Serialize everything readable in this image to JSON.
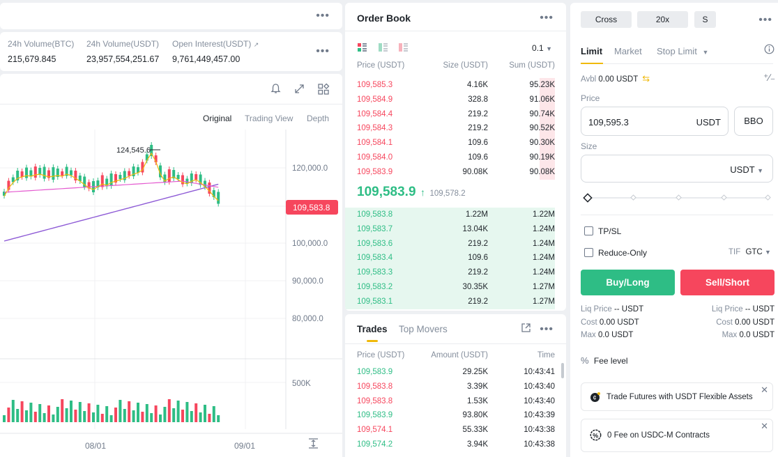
{
  "stats": [
    {
      "label": "24h Volume(BTC)",
      "value": "215,679.845"
    },
    {
      "label": "24h Volume(USDT)",
      "value": "23,957,554,251.67"
    },
    {
      "label": "Open Interest(USDT)",
      "value": "9,761,449,457.00"
    }
  ],
  "chart": {
    "tabs": [
      "Original",
      "Trading View",
      "Depth"
    ],
    "price_labels": [
      "120,000.0",
      "100,000.0",
      "90,000.0",
      "80,000.0"
    ],
    "high_label": "124,545.6",
    "current_price": "109,583.8",
    "volume_label": "500K",
    "x_labels": [
      "08/01",
      "09/01"
    ],
    "accent_red": "#f6465d",
    "accent_green": "#2ebd85"
  },
  "chart_data": {
    "type": "candlestick",
    "title": "",
    "ylabel": "",
    "ylim": [
      70000,
      130000
    ],
    "y_ticks": [
      120000,
      100000,
      90000,
      80000
    ],
    "x_ticks": [
      "08/01",
      "09/01"
    ],
    "last_price": 109583.8,
    "annotated_high": 124545.6
  },
  "orderbook": {
    "title": "Order Book",
    "precision": "0.1",
    "headers": {
      "price": "Price (USDT)",
      "size": "Size (USDT)",
      "sum": "Sum (USDT)"
    },
    "asks": [
      {
        "price": "109,585.3",
        "size": "4.16K",
        "sum": "95.23K",
        "depth": 0.08
      },
      {
        "price": "109,584.9",
        "size": "328.8",
        "sum": "91.06K",
        "depth": 0.08
      },
      {
        "price": "109,584.4",
        "size": "219.2",
        "sum": "90.74K",
        "depth": 0.08
      },
      {
        "price": "109,584.3",
        "size": "219.2",
        "sum": "90.52K",
        "depth": 0.08
      },
      {
        "price": "109,584.1",
        "size": "109.6",
        "sum": "90.30K",
        "depth": 0.08
      },
      {
        "price": "109,584.0",
        "size": "109.6",
        "sum": "90.19K",
        "depth": 0.08
      },
      {
        "price": "109,583.9",
        "size": "90.08K",
        "sum": "90.08K",
        "depth": 0.08
      }
    ],
    "mid_price": "109,583.9",
    "mark_price": "109,578.2",
    "bids": [
      {
        "price": "109,583.8",
        "size": "1.22M",
        "sum": "1.22M",
        "depth": 1
      },
      {
        "price": "109,583.7",
        "size": "13.04K",
        "sum": "1.24M",
        "depth": 1
      },
      {
        "price": "109,583.6",
        "size": "219.2",
        "sum": "1.24M",
        "depth": 1
      },
      {
        "price": "109,583.4",
        "size": "109.6",
        "sum": "1.24M",
        "depth": 1
      },
      {
        "price": "109,583.3",
        "size": "219.2",
        "sum": "1.24M",
        "depth": 1
      },
      {
        "price": "109,583.2",
        "size": "30.35K",
        "sum": "1.27M",
        "depth": 1
      },
      {
        "price": "109,583.1",
        "size": "219.2",
        "sum": "1.27M",
        "depth": 1
      }
    ]
  },
  "trades": {
    "tabs": [
      "Trades",
      "Top Movers"
    ],
    "headers": {
      "price": "Price (USDT)",
      "amount": "Amount (USDT)",
      "time": "Time"
    },
    "rows": [
      {
        "price": "109,583.9",
        "amount": "29.25K",
        "time": "10:43:41",
        "side": "buy"
      },
      {
        "price": "109,583.8",
        "amount": "3.39K",
        "time": "10:43:40",
        "side": "sell"
      },
      {
        "price": "109,583.8",
        "amount": "1.53K",
        "time": "10:43:40",
        "side": "sell"
      },
      {
        "price": "109,583.9",
        "amount": "93.80K",
        "time": "10:43:39",
        "side": "buy"
      },
      {
        "price": "109,574.1",
        "amount": "55.33K",
        "time": "10:43:38",
        "side": "sell"
      },
      {
        "price": "109,574.2",
        "amount": "3.94K",
        "time": "10:43:38",
        "side": "buy"
      }
    ]
  },
  "form": {
    "margin_mode": "Cross",
    "leverage": "20x",
    "asset_mode": "S",
    "order_tabs": [
      "Limit",
      "Market",
      "Stop Limit"
    ],
    "avbl_label": "Avbl",
    "avbl_value": "0.00 USDT",
    "price_label": "Price",
    "price_value": "109,595.3",
    "price_unit": "USDT",
    "bbo": "BBO",
    "size_label": "Size",
    "size_unit": "USDT",
    "tpsl": "TP/SL",
    "reduce_only": "Reduce-Only",
    "tif_label": "TIF",
    "tif_value": "GTC",
    "buy": "Buy/Long",
    "sell": "Sell/Short",
    "liq_label": "Liq Price",
    "liq_value": "-- USDT",
    "cost_label": "Cost",
    "cost_value": "0.00 USDT",
    "max_label": "Max",
    "max_value": "0.0 USDT",
    "fee_level": "Fee level",
    "banner1": "Trade Futures with USDT Flexible Assets",
    "banner2": "0 Fee on USDC-M Contracts"
  }
}
